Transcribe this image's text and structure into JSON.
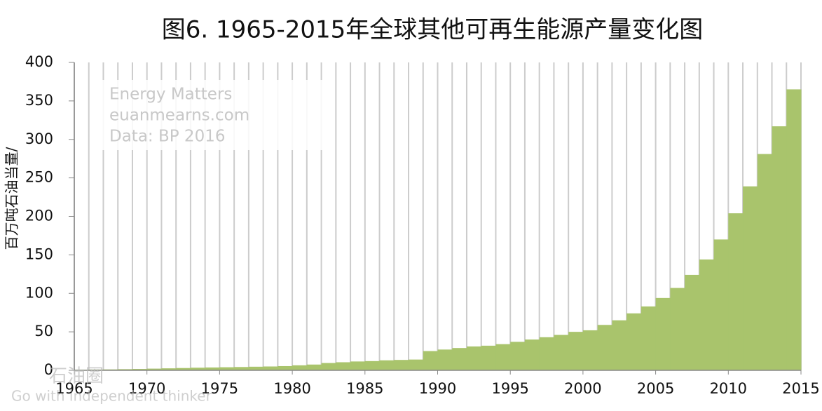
{
  "chart_data": {
    "type": "step-area",
    "title": "图6. 1965-2015年全球其他可再生能源产量变化图",
    "y_label": "百万吨石油当量/",
    "annotations": [
      "Energy Matters",
      "euanmearns.com",
      "Data: BP 2016"
    ],
    "watermark": [
      "石油圈",
      "Go with independent thinker"
    ],
    "x": [
      1966,
      1967,
      1968,
      1969,
      1970,
      1971,
      1972,
      1973,
      1974,
      1975,
      1976,
      1977,
      1978,
      1979,
      1980,
      1981,
      1982,
      1983,
      1984,
      1985,
      1986,
      1987,
      1988,
      1989,
      1990,
      1991,
      1992,
      1993,
      1994,
      1995,
      1996,
      1997,
      1998,
      1999,
      2000,
      2001,
      2002,
      2003,
      2004,
      2005,
      2006,
      2007,
      2008,
      2009,
      2010,
      2011,
      2012,
      2013,
      2014,
      2015
    ],
    "values": [
      0.8,
      1.0,
      1.2,
      1.5,
      1.8,
      2.2,
      2.6,
      3.0,
      3.4,
      3.7,
      4.0,
      4.3,
      4.7,
      5.0,
      5.5,
      6.5,
      7.5,
      9.5,
      10.5,
      11.5,
      12,
      13,
      13.5,
      14,
      25,
      27,
      29,
      31,
      32,
      34,
      37,
      40,
      43,
      46,
      50,
      52,
      59,
      65,
      74,
      83,
      94,
      107,
      124,
      144,
      170,
      204,
      239,
      281,
      317,
      365
    ],
    "color": "#a9c46c",
    "xlim": [
      1965,
      2015
    ],
    "xticks": [
      1965,
      1970,
      1975,
      1980,
      1985,
      1990,
      1995,
      2000,
      2005,
      2010,
      2015
    ],
    "ylim": [
      0,
      400
    ],
    "yticks": [
      0,
      50,
      100,
      150,
      200,
      250,
      300,
      350,
      400
    ],
    "grid": true
  }
}
